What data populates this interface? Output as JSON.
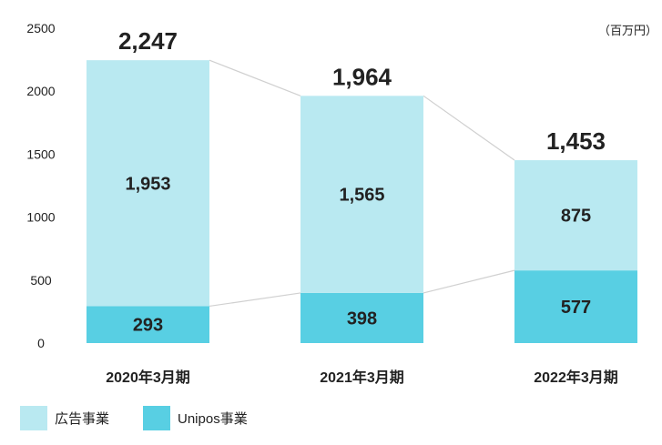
{
  "chart_data": {
    "type": "bar",
    "stacked": true,
    "unit": "（百万円）",
    "categories": [
      "2020年3月期",
      "2021年3月期",
      "2022年3月期"
    ],
    "series": [
      {
        "name": "Unipos事業",
        "values": [
          293,
          398,
          577
        ],
        "color": "#58cfe3"
      },
      {
        "name": "広告事業",
        "values": [
          1953,
          1565,
          875
        ],
        "color": "#b9e9f1"
      }
    ],
    "totals": [
      "2,247",
      "1,964",
      "1,453"
    ],
    "value_labels": [
      [
        "293",
        "398",
        "577"
      ],
      [
        "1,953",
        "1,565",
        "875"
      ]
    ],
    "yticks": [
      "0",
      "500",
      "1000",
      "1500",
      "2000",
      "2500"
    ],
    "ylim": [
      0,
      2500
    ],
    "connector_color": "#d0d0d0",
    "legend": {
      "position": "bottom-left",
      "order": [
        "広告事業",
        "Unipos事業"
      ]
    }
  }
}
